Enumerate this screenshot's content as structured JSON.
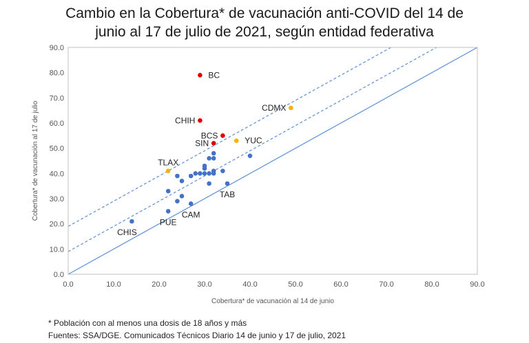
{
  "title_line1": "Cambio en la Cobertura* de vacunación anti-COVID del 14 de",
  "title_line2": "junio al 17 de julio de 2021, según entidad federativa",
  "footnote": "* Población con al menos una dosis  de  18 años y más",
  "source": "Fuentes: SSA/DGE. Comunicados Técnicos Diario 14 de junio y 17 de julio, 2021",
  "chart_data": {
    "type": "scatter",
    "title": "Cambio en la Cobertura* de vacunación anti-COVID del 14 de junio al 17 de julio de 2021, según entidad federativa",
    "xlabel": "Cobertura* de vacunación al 14 de junio",
    "ylabel": "Cobertura* de vacunación al 17 de julio",
    "xlim": [
      0,
      90
    ],
    "ylim": [
      0,
      90
    ],
    "xticks": [
      "0.0",
      "10.0",
      "20.0",
      "30.0",
      "40.0",
      "50.0",
      "60.0",
      "70.0",
      "80.0",
      "90.0"
    ],
    "yticks": [
      "0.0",
      "10.0",
      "20.0",
      "30.0",
      "40.0",
      "50.0",
      "60.0",
      "70.0",
      "80.0",
      "90.0"
    ],
    "colors": {
      "blue": "#4472c4",
      "red": "#e00000",
      "yellow": "#f4b400",
      "line": "#5b8fd6"
    },
    "reference_lines": [
      {
        "name": "y = x",
        "intercept": 0,
        "slope": 1,
        "style": "solid"
      },
      {
        "name": "y = x + 9",
        "intercept": 9,
        "slope": 1,
        "style": "dashed"
      },
      {
        "name": "y = x + 19",
        "intercept": 19,
        "slope": 1,
        "style": "dashed"
      }
    ],
    "points": [
      {
        "label": "BC",
        "x": 29,
        "y": 79,
        "color": "red",
        "label_pos": "right"
      },
      {
        "label": "CHIH",
        "x": 29,
        "y": 61,
        "color": "red",
        "label_pos": "left"
      },
      {
        "label": "BCS",
        "x": 34,
        "y": 55,
        "color": "red",
        "label_pos": "left"
      },
      {
        "label": "SIN",
        "x": 32,
        "y": 52,
        "color": "red",
        "label_pos": "left"
      },
      {
        "label": "CDMX",
        "x": 49,
        "y": 66,
        "color": "yellow",
        "label_pos": "left"
      },
      {
        "label": "YUC",
        "x": 37,
        "y": 53,
        "color": "yellow",
        "label_pos": "right"
      },
      {
        "label": "TLAX",
        "x": 22,
        "y": 41,
        "color": "yellow",
        "label_pos": "above"
      },
      {
        "label": "TAB",
        "x": 35,
        "y": 36,
        "color": "blue",
        "label_pos": "below"
      },
      {
        "label": "PUE",
        "x": 22,
        "y": 25,
        "color": "blue",
        "label_pos": "below"
      },
      {
        "label": "CAM",
        "x": 27,
        "y": 28,
        "color": "blue",
        "label_pos": "below"
      },
      {
        "label": "CHIS",
        "x": 14,
        "y": 21,
        "color": "blue",
        "label_pos": "belowleft"
      },
      {
        "label": "",
        "x": 40,
        "y": 47,
        "color": "blue"
      },
      {
        "label": "",
        "x": 32,
        "y": 48,
        "color": "blue"
      },
      {
        "label": "",
        "x": 31,
        "y": 46,
        "color": "blue"
      },
      {
        "label": "",
        "x": 32,
        "y": 46,
        "color": "blue"
      },
      {
        "label": "",
        "x": 30,
        "y": 43,
        "color": "blue"
      },
      {
        "label": "",
        "x": 30,
        "y": 42,
        "color": "blue"
      },
      {
        "label": "",
        "x": 28,
        "y": 40,
        "color": "blue"
      },
      {
        "label": "",
        "x": 29,
        "y": 40,
        "color": "blue"
      },
      {
        "label": "",
        "x": 30,
        "y": 40,
        "color": "blue"
      },
      {
        "label": "",
        "x": 31,
        "y": 40,
        "color": "blue"
      },
      {
        "label": "",
        "x": 32,
        "y": 41,
        "color": "blue"
      },
      {
        "label": "",
        "x": 32,
        "y": 40,
        "color": "blue"
      },
      {
        "label": "",
        "x": 34,
        "y": 41,
        "color": "blue"
      },
      {
        "label": "",
        "x": 27,
        "y": 39,
        "color": "blue"
      },
      {
        "label": "",
        "x": 24,
        "y": 39,
        "color": "blue"
      },
      {
        "label": "",
        "x": 25,
        "y": 37,
        "color": "blue"
      },
      {
        "label": "",
        "x": 31,
        "y": 36,
        "color": "blue"
      },
      {
        "label": "",
        "x": 22,
        "y": 33,
        "color": "blue"
      },
      {
        "label": "",
        "x": 25,
        "y": 31,
        "color": "blue"
      },
      {
        "label": "",
        "x": 24,
        "y": 29,
        "color": "blue"
      }
    ]
  }
}
